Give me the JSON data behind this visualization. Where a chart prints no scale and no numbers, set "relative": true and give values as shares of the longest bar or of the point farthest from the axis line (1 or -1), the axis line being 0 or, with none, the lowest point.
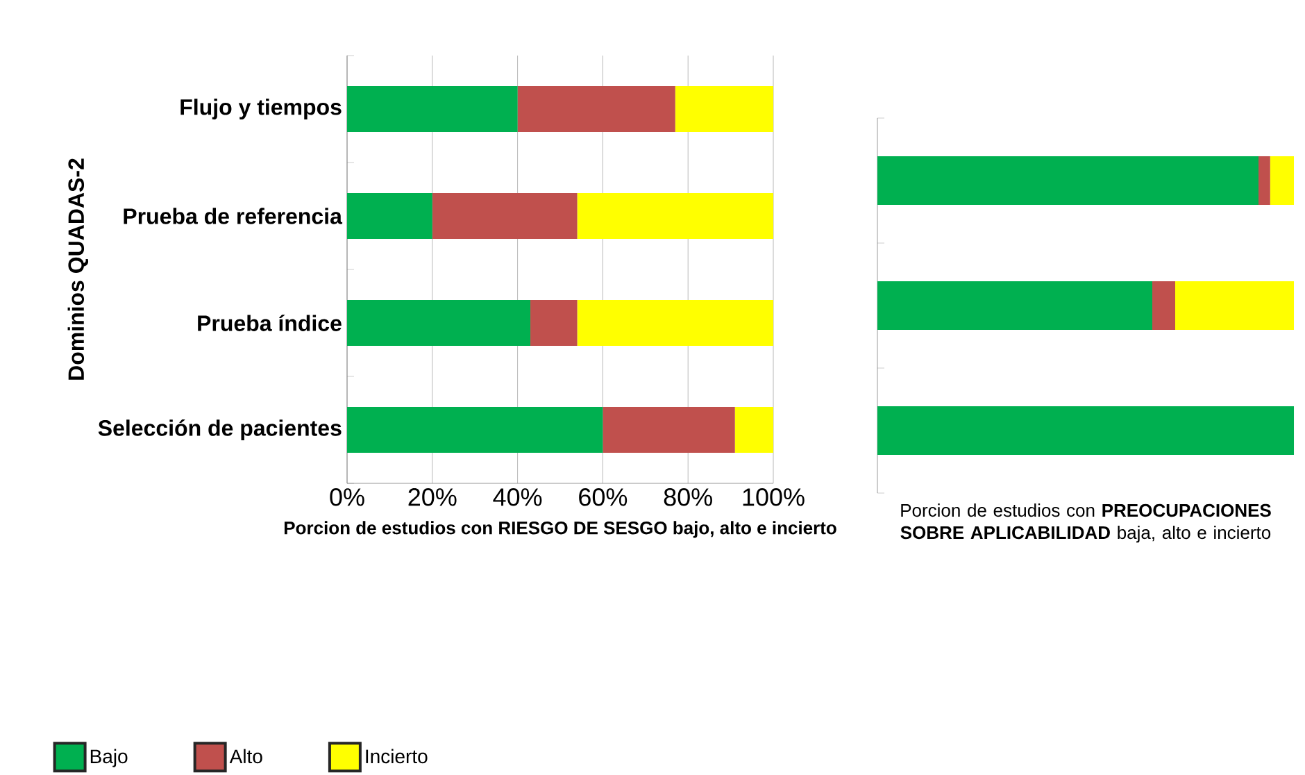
{
  "chart_data": [
    {
      "type": "bar",
      "orientation": "horizontal",
      "stacked": true,
      "ylabel": "Dominios QUADAS-2",
      "xlabel": "Porcion de estudios con RIESGO DE SESGO bajo, alto e incierto",
      "categories": [
        "Flujo y tiempos",
        "Prueba de referencia",
        "Prueba índice",
        "Selección de pacientes"
      ],
      "series": [
        {
          "name": "Bajo",
          "color": "#00b050",
          "values": [
            40,
            20,
            43,
            60
          ]
        },
        {
          "name": "Alto",
          "color": "#c0504d",
          "values": [
            37,
            34,
            11,
            31
          ]
        },
        {
          "name": "Incierto",
          "color": "#ffff00",
          "values": [
            23,
            46,
            46,
            9
          ]
        }
      ],
      "xlim": [
        0,
        100
      ],
      "xticks": [
        {
          "value": 0,
          "label": "0%"
        },
        {
          "value": 20,
          "label": "20%"
        },
        {
          "value": 40,
          "label": "40%"
        },
        {
          "value": 60,
          "label": "60%"
        },
        {
          "value": 80,
          "label": "80%"
        },
        {
          "value": 100,
          "label": "100%"
        }
      ],
      "grid": "x",
      "legend": "bottom"
    },
    {
      "type": "bar",
      "orientation": "horizontal",
      "stacked": true,
      "relative": true,
      "xlabel": "Porcion de estudios con **PREOCUPACIONES SOBRE APLICABILIDAD** baja, alto e incierto",
      "categories": [
        null,
        null,
        null
      ],
      "series": [
        {
          "color": "#00b050",
          "values": [
            0.915,
            0.66,
            1.0
          ]
        },
        {
          "color": "#c0504d",
          "values": [
            0.028,
            0.055,
            0
          ]
        },
        {
          "color": "#ffff00",
          "values": [
            0.057,
            0.285,
            0
          ]
        }
      ]
    }
  ]
}
